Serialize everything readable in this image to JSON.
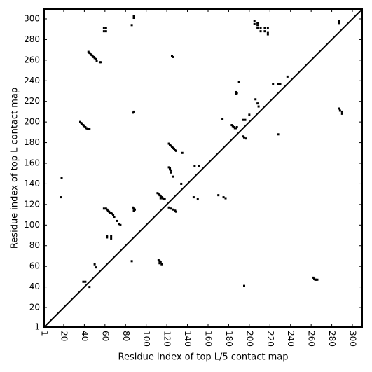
{
  "chart_data": {
    "type": "scatter",
    "xlabel": "Residue index of top L/5 contact map",
    "ylabel": "Residue index of top L contact map",
    "xlim": [
      1,
      309.5
    ],
    "ylim": [
      1,
      309.5
    ],
    "xticks": [
      1,
      20,
      40,
      60,
      80,
      100,
      120,
      140,
      160,
      180,
      200,
      220,
      240,
      260,
      280,
      300
    ],
    "yticks": [
      1,
      20,
      40,
      60,
      80,
      100,
      120,
      140,
      160,
      180,
      200,
      220,
      240,
      260,
      280,
      300
    ],
    "diagonal": true,
    "marker": "square",
    "series": [
      {
        "color": "#000000",
        "x": [
          44,
          45,
          46,
          47,
          48,
          49,
          50,
          51,
          52,
          55,
          56,
          36,
          37,
          38,
          39,
          40,
          41,
          42,
          43,
          44,
          45,
          59,
          61,
          59,
          61,
          88,
          88,
          86,
          87,
          88,
          125,
          126,
          122,
          123,
          124,
          125,
          126,
          127,
          128,
          129,
          135,
          122,
          123,
          123,
          124,
          124,
          126,
          134,
          147,
          151,
          111,
          112,
          113,
          114,
          115,
          116,
          117,
          118,
          114,
          122,
          124,
          126,
          128,
          129,
          146,
          150,
          170,
          175,
          177,
          174,
          190,
          187,
          188,
          187,
          183,
          184,
          185,
          186,
          187,
          188,
          194,
          196,
          194,
          195,
          197,
          200,
          206,
          208,
          209,
          205,
          205,
          208,
          208,
          208,
          211,
          215,
          218,
          218,
          211,
          215,
          218,
          223,
          228,
          230,
          237,
          228,
          287,
          287,
          287,
          288,
          290,
          290,
          18,
          17,
          59,
          61,
          62,
          63,
          64,
          65,
          66,
          67,
          68,
          69,
          72,
          74,
          75,
          62,
          62,
          66,
          66,
          87,
          88,
          89,
          88,
          112,
          113,
          114,
          113,
          115,
          86,
          50,
          51,
          39,
          41,
          45,
          262,
          263,
          264,
          265,
          266,
          195
        ],
        "values": [
          268,
          267,
          266,
          265,
          264,
          263,
          262,
          261,
          259,
          258,
          258,
          200,
          199,
          198,
          197,
          196,
          195,
          194,
          193,
          193,
          193,
          291,
          291,
          288,
          288,
          303,
          301,
          294,
          209,
          210,
          264,
          263,
          179,
          178,
          177,
          176,
          175,
          174,
          173,
          172,
          170,
          156,
          155,
          154,
          153,
          151,
          147,
          140,
          157,
          157,
          131,
          130,
          129,
          128,
          127,
          126,
          125,
          125,
          126,
          117,
          116,
          115,
          114,
          113,
          127,
          125,
          129,
          127,
          126,
          203,
          239,
          229,
          228,
          227,
          197,
          196,
          195,
          194,
          194,
          195,
          202,
          202,
          186,
          185,
          184,
          207,
          222,
          218,
          215,
          298,
          295,
          296,
          294,
          291,
          291,
          291,
          291,
          287,
          288,
          288,
          285,
          237,
          237,
          237,
          244,
          188,
          298,
          296,
          213,
          211,
          210,
          208,
          146,
          127,
          116,
          116,
          115,
          114,
          113,
          112,
          112,
          111,
          110,
          108,
          104,
          101,
          100,
          89,
          88,
          89,
          87,
          117,
          116,
          115,
          114,
          66,
          65,
          64,
          63,
          62,
          65,
          62,
          59,
          45,
          45,
          40,
          49,
          48,
          47,
          47,
          47,
          41
        ]
      }
    ]
  }
}
